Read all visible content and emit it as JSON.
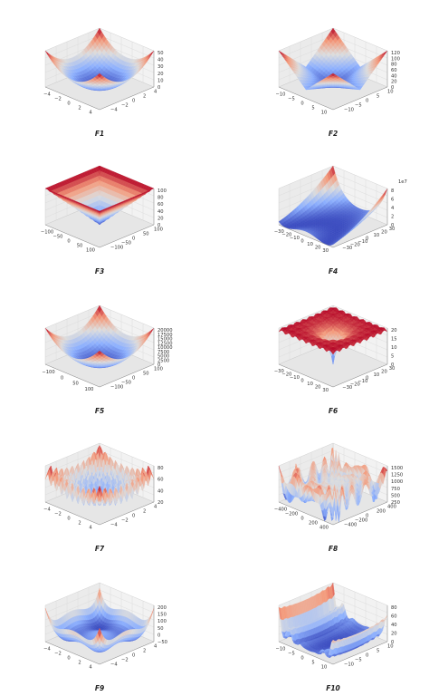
{
  "figure": {
    "background": "#ffffff",
    "colormap": "coolwarm",
    "colormap_low": "#3b4cc0",
    "colormap_mid": "#dddddd",
    "colormap_high": "#b40426"
  },
  "chart_data": [
    {
      "type": "surface3d",
      "title": "F1",
      "function": "sphere",
      "x_ticks": [
        "−4",
        "−2",
        "0",
        "2",
        "4"
      ],
      "y_ticks": [
        "−4",
        "−2",
        "0",
        "2",
        "4"
      ],
      "z_ticks": [
        "0",
        "10",
        "20",
        "30",
        "40",
        "50"
      ],
      "xlim": [
        -5,
        5
      ],
      "ylim": [
        -5,
        5
      ],
      "zlim": [
        0,
        50
      ],
      "grid": true
    },
    {
      "type": "surface3d",
      "title": "F2",
      "function": "abs_sum_product",
      "x_ticks": [
        "−10",
        "−5",
        "0",
        "5",
        "10"
      ],
      "y_ticks": [
        "−10",
        "−5",
        "0",
        "5",
        "10"
      ],
      "z_ticks": [
        "0",
        "20",
        "40",
        "60",
        "80",
        "100",
        "120"
      ],
      "xlim": [
        -10,
        10
      ],
      "ylim": [
        -10,
        10
      ],
      "zlim": [
        0,
        120
      ],
      "grid": true
    },
    {
      "type": "surface3d",
      "title": "F3",
      "function": "max_abs_inverted",
      "x_ticks": [
        "−100",
        "−50",
        "0",
        "50",
        "100"
      ],
      "y_ticks": [
        "−100",
        "−50",
        "0",
        "50",
        "100"
      ],
      "z_ticks": [
        "0",
        "20",
        "40",
        "60",
        "80",
        "100"
      ],
      "xlim": [
        -100,
        100
      ],
      "ylim": [
        -100,
        100
      ],
      "zlim": [
        0,
        100
      ],
      "grid": true
    },
    {
      "type": "surface3d",
      "title": "F4",
      "function": "rosenbrock",
      "z_offset_text": "1e7",
      "x_ticks": [
        "−30",
        "−20",
        "−10",
        "0",
        "10",
        "20",
        "30"
      ],
      "y_ticks": [
        "−30",
        "−20",
        "−10",
        "0",
        "10",
        "20",
        "30"
      ],
      "z_ticks": [
        "0",
        "2",
        "4",
        "6",
        "8"
      ],
      "xlim": [
        -30,
        30
      ],
      "ylim": [
        -30,
        30
      ],
      "zlim": [
        0,
        8
      ],
      "grid": true
    },
    {
      "type": "surface3d",
      "title": "F5",
      "function": "sphere",
      "x_ticks": [
        "−100",
        "0",
        "50",
        "100"
      ],
      "y_ticks": [
        "−100",
        "−50",
        "0",
        "50",
        "100"
      ],
      "z_ticks": [
        "0",
        "2500",
        "5000",
        "7500",
        "10000",
        "12500",
        "15000",
        "17500",
        "20000"
      ],
      "xlim": [
        -100,
        100
      ],
      "ylim": [
        -100,
        100
      ],
      "zlim": [
        0,
        20000
      ],
      "grid": true
    },
    {
      "type": "surface3d",
      "title": "F6",
      "function": "ackley",
      "x_ticks": [
        "−30",
        "−20",
        "−10",
        "0",
        "10",
        "20",
        "30"
      ],
      "y_ticks": [
        "−30",
        "−20",
        "−10",
        "0",
        "10",
        "20",
        "30"
      ],
      "z_ticks": [
        "0",
        "5",
        "10",
        "15",
        "20"
      ],
      "xlim": [
        -30,
        30
      ],
      "ylim": [
        -30,
        30
      ],
      "zlim": [
        0,
        22
      ],
      "grid": true
    },
    {
      "type": "surface3d",
      "title": "F7",
      "function": "rastrigin",
      "x_ticks": [
        "−4",
        "−2",
        "0",
        "2",
        "4"
      ],
      "y_ticks": [
        "−4",
        "−2",
        "0",
        "2",
        "4"
      ],
      "z_ticks": [
        "20",
        "40",
        "60",
        "80"
      ],
      "xlim": [
        -5,
        5
      ],
      "ylim": [
        -5,
        5
      ],
      "zlim": [
        0,
        85
      ],
      "grid": true
    },
    {
      "type": "surface3d",
      "title": "F8",
      "function": "eggholder",
      "x_ticks": [
        "−400",
        "−200",
        "0",
        "200",
        "400"
      ],
      "y_ticks": [
        "−400",
        "−200",
        "0",
        "200",
        "400"
      ],
      "z_ticks": [
        "250",
        "500",
        "750",
        "1000",
        "1250",
        "1500"
      ],
      "xlim": [
        -500,
        500
      ],
      "ylim": [
        -500,
        500
      ],
      "zlim": [
        0,
        1600
      ],
      "grid": true
    },
    {
      "type": "surface3d",
      "title": "F9",
      "function": "styblinski_tang",
      "x_ticks": [
        "−4",
        "−2",
        "0",
        "2",
        "4"
      ],
      "y_ticks": [
        "−4",
        "−2",
        "0",
        "2",
        "4"
      ],
      "z_ticks": [
        "−50",
        "0",
        "50",
        "100",
        "150",
        "200"
      ],
      "xlim": [
        -5,
        5
      ],
      "ylim": [
        -5,
        5
      ],
      "zlim": [
        -80,
        230
      ],
      "grid": true
    },
    {
      "type": "surface3d",
      "title": "F10",
      "function": "levy",
      "x_ticks": [
        "−10",
        "−5",
        "0",
        "5",
        "10"
      ],
      "y_ticks": [
        "−10",
        "−5",
        "0",
        "5",
        "10"
      ],
      "z_ticks": [
        "0",
        "20",
        "40",
        "60",
        "80"
      ],
      "xlim": [
        -10,
        10
      ],
      "ylim": [
        -10,
        10
      ],
      "zlim": [
        0,
        90
      ],
      "grid": true
    }
  ]
}
